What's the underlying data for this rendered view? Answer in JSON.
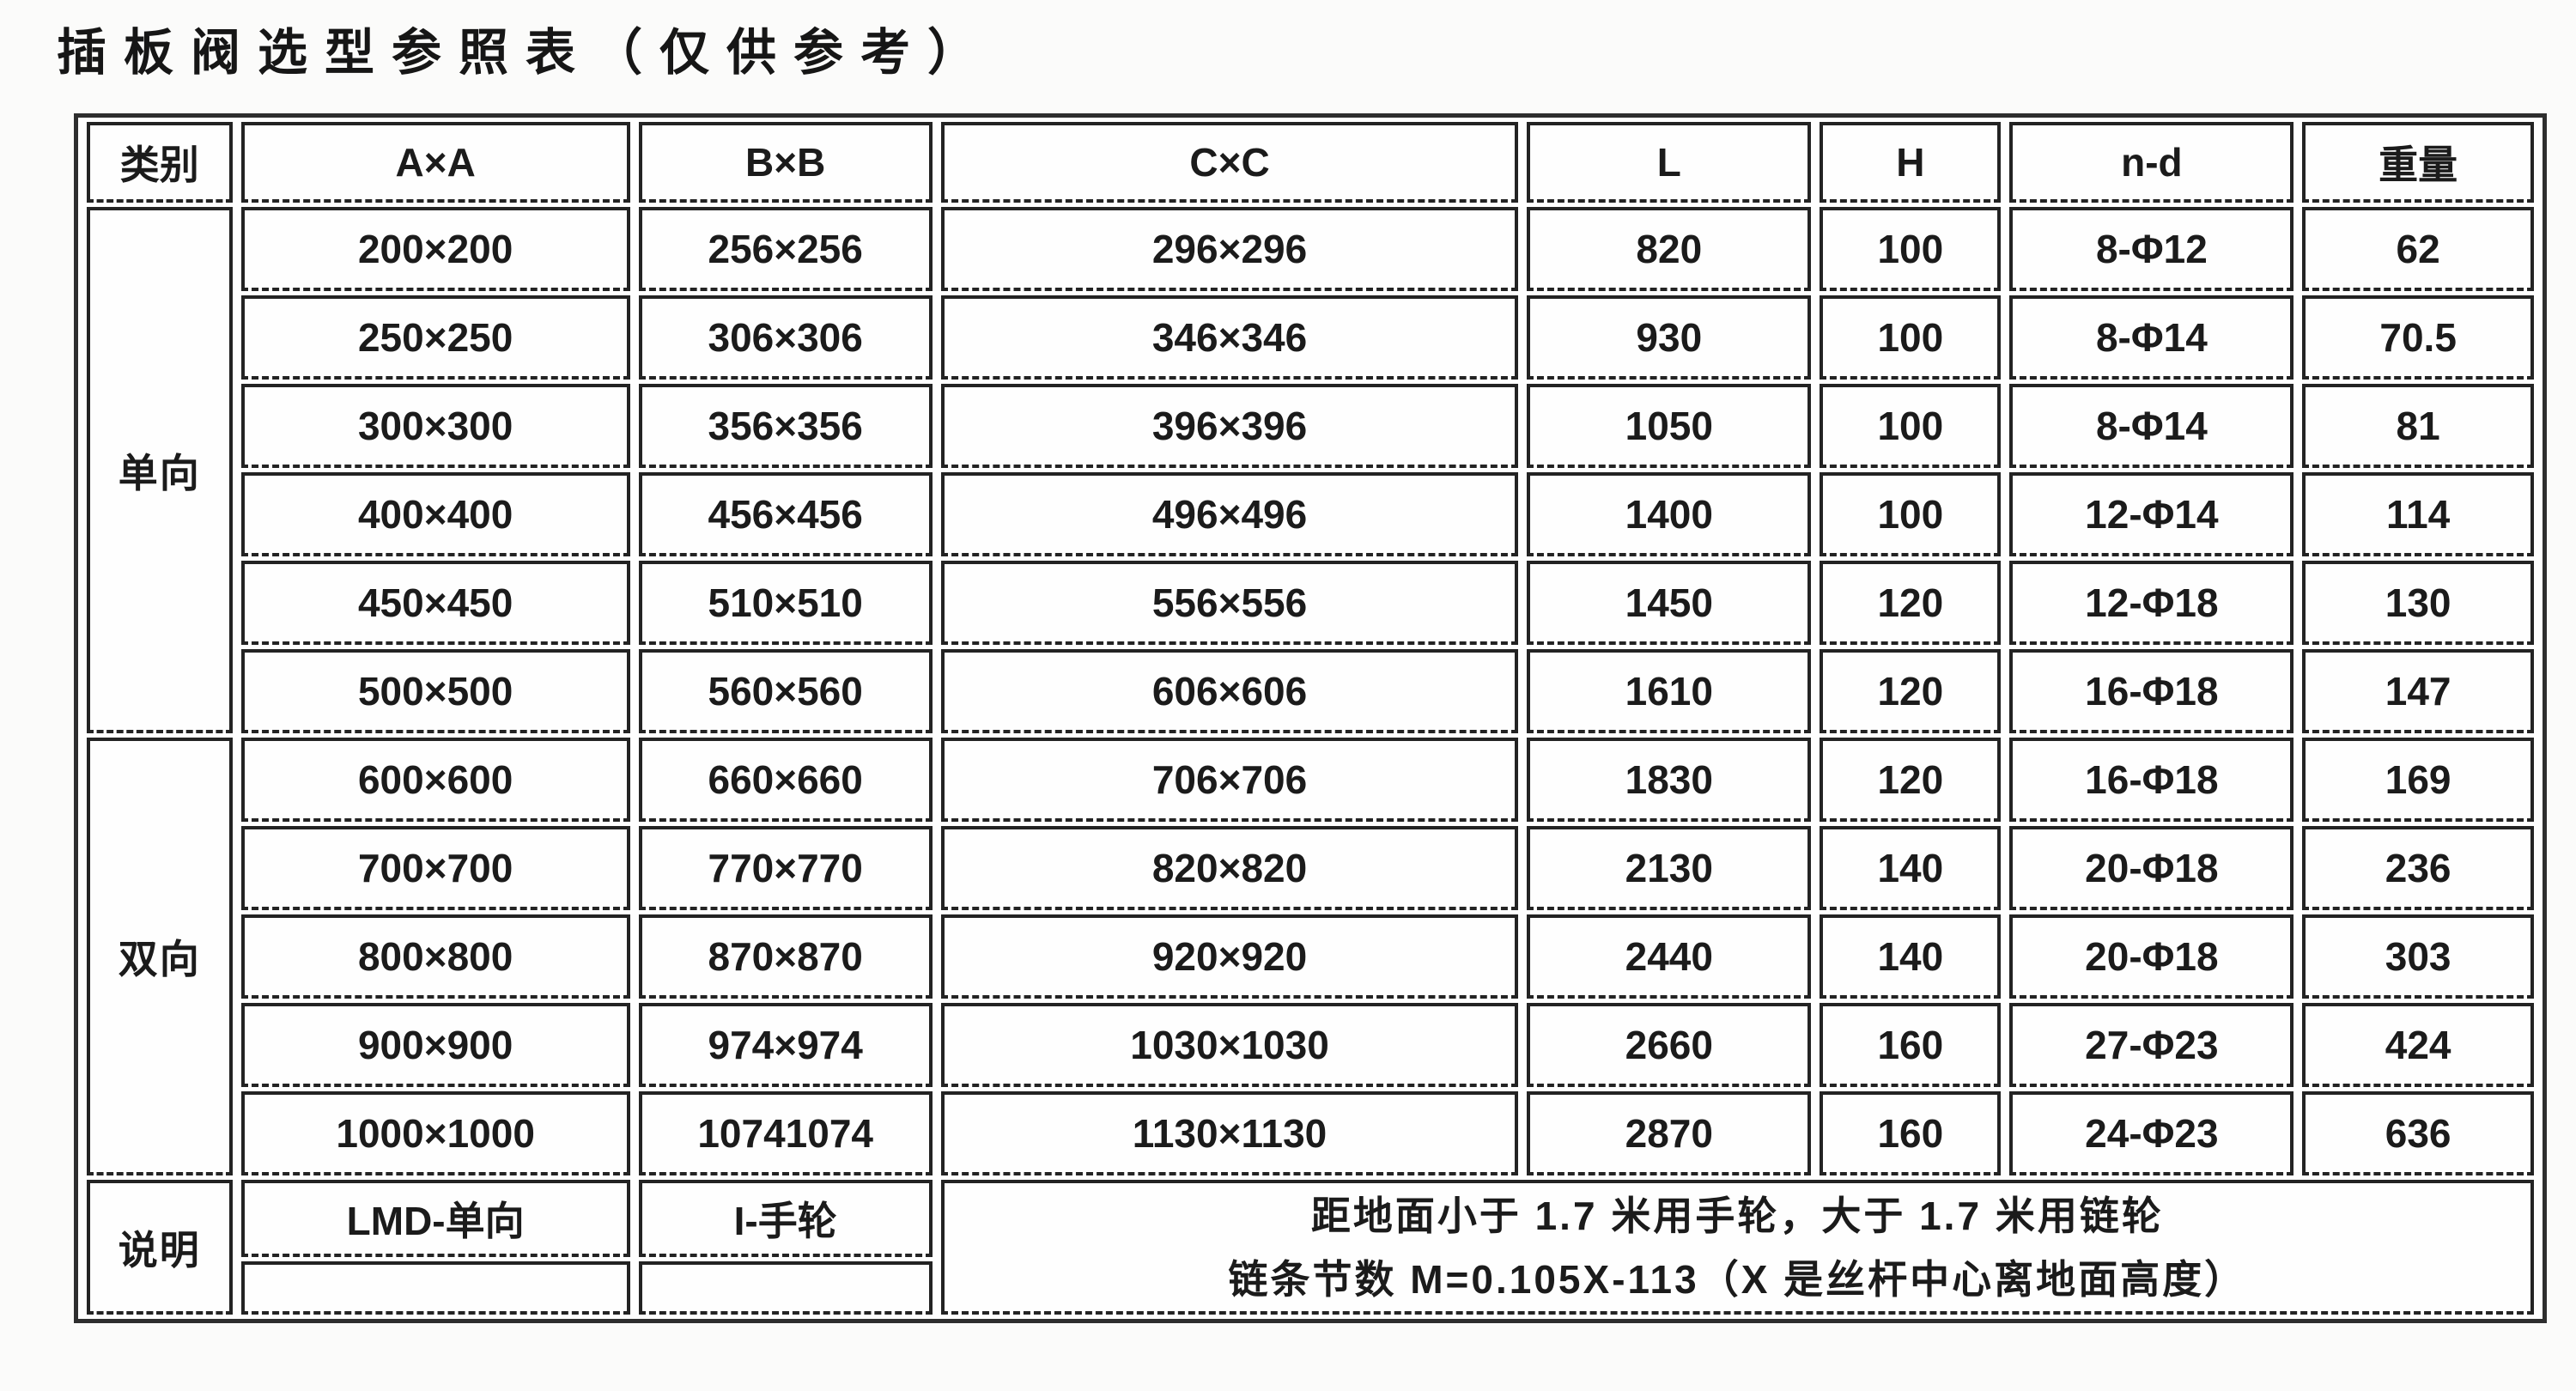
{
  "title": "插板阀选型参照表（仅供参考）",
  "table": {
    "headers": [
      "类别",
      "A×A",
      "B×B",
      "C×C",
      "L",
      "H",
      "n-d",
      "重量"
    ],
    "groups": [
      {
        "label": "单向",
        "rows": [
          [
            "200×200",
            "256×256",
            "296×296",
            "820",
            "100",
            "8-Φ12",
            "62"
          ],
          [
            "250×250",
            "306×306",
            "346×346",
            "930",
            "100",
            "8-Φ14",
            "70.5"
          ],
          [
            "300×300",
            "356×356",
            "396×396",
            "1050",
            "100",
            "8-Φ14",
            "81"
          ],
          [
            "400×400",
            "456×456",
            "496×496",
            "1400",
            "100",
            "12-Φ14",
            "114"
          ],
          [
            "450×450",
            "510×510",
            "556×556",
            "1450",
            "120",
            "12-Φ18",
            "130"
          ],
          [
            "500×500",
            "560×560",
            "606×606",
            "1610",
            "120",
            "16-Φ18",
            "147"
          ]
        ]
      },
      {
        "label": "双向",
        "rows": [
          [
            "600×600",
            "660×660",
            "706×706",
            "1830",
            "120",
            "16-Φ18",
            "169"
          ],
          [
            "700×700",
            "770×770",
            "820×820",
            "2130",
            "140",
            "20-Φ18",
            "236"
          ],
          [
            "800×800",
            "870×870",
            "920×920",
            "2440",
            "140",
            "20-Φ18",
            "303"
          ],
          [
            "900×900",
            "974×974",
            "1030×1030",
            "2660",
            "160",
            "27-Φ23",
            "424"
          ],
          [
            "1000×1000",
            "10741074",
            "1130×1130",
            "2870",
            "160",
            "24-Φ23",
            "636"
          ]
        ]
      }
    ],
    "notes": {
      "label": "说明",
      "cells": [
        "LMD-单向",
        "I-手轮"
      ],
      "lines": [
        "距地面小于 1.7 米用手轮，大于 1.7 米用链轮",
        "链条节数 M=0.105X-113（X 是丝杆中心离地面高度）"
      ]
    }
  }
}
